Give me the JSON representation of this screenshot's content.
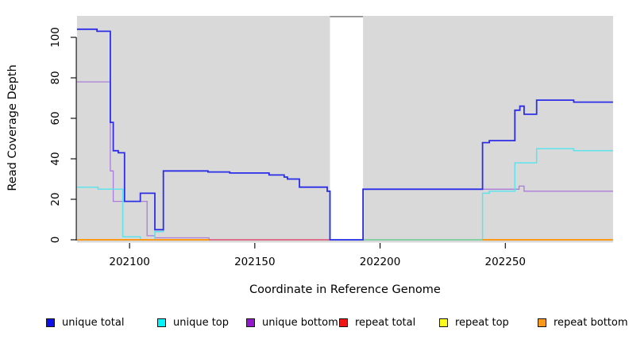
{
  "chart_data": {
    "type": "line",
    "step": true,
    "title": "",
    "xlabel": "Coordinate in Reference Genome",
    "ylabel": "Read Coverage Depth",
    "xlim": [
      202079,
      202293
    ],
    "ylim": [
      0,
      110.6
    ],
    "xticks": [
      202100,
      202150,
      202200,
      202250
    ],
    "yticks": [
      0,
      20,
      40,
      60,
      80,
      100
    ],
    "grid": "off",
    "legend_position": "bottom",
    "plot_background": "#d9d9d9",
    "masked_region": {
      "x0": 202180,
      "x1": 202193.2,
      "fill": "#ffffff",
      "cap_color": "#8c8c8c"
    },
    "series": [
      {
        "name": "unique total",
        "color": "#2d2de8",
        "width": 1.8,
        "points": [
          [
            202079,
            104
          ],
          [
            202087,
            103
          ],
          [
            202092.3,
            58
          ],
          [
            202093.5,
            44
          ],
          [
            202095.5,
            43
          ],
          [
            202098,
            19
          ],
          [
            202104.3,
            23
          ],
          [
            202110.1,
            5
          ],
          [
            202113.5,
            34
          ],
          [
            202131.3,
            33.5
          ],
          [
            202140,
            33
          ],
          [
            202155.7,
            32
          ],
          [
            202161.7,
            31
          ],
          [
            202163,
            30
          ],
          [
            202167.8,
            26
          ],
          [
            202178.9,
            24
          ],
          [
            202180,
            0
          ],
          [
            202193.2,
            25
          ],
          [
            202240.9,
            48
          ],
          [
            202243.6,
            49
          ],
          [
            202253.8,
            64
          ],
          [
            202255.8,
            66
          ],
          [
            202257.5,
            62
          ],
          [
            202262.5,
            69
          ],
          [
            202277.3,
            68
          ]
        ]
      },
      {
        "name": "unique top",
        "color": "#5fe3ea",
        "width": 1.5,
        "points": [
          [
            202079,
            26
          ],
          [
            202087.4,
            25
          ],
          [
            202097.3,
            1.5
          ],
          [
            202104.3,
            0
          ],
          [
            202110.1,
            4
          ],
          [
            202113.5,
            34
          ],
          [
            202131.3,
            33.5
          ],
          [
            202140,
            33
          ],
          [
            202155.7,
            32
          ],
          [
            202161.7,
            31
          ],
          [
            202163,
            30
          ],
          [
            202167.8,
            26
          ],
          [
            202178.9,
            24
          ],
          [
            202180,
            0
          ],
          [
            202240.9,
            23
          ],
          [
            202243.6,
            24
          ],
          [
            202253.8,
            38
          ],
          [
            202262.5,
            45
          ],
          [
            202277.3,
            44
          ]
        ]
      },
      {
        "name": "unique bottom",
        "color": "#ac7cd9",
        "width": 1.3,
        "points": [
          [
            202079,
            78
          ],
          [
            202092.3,
            34
          ],
          [
            202093.5,
            19
          ],
          [
            202107,
            2
          ],
          [
            202110.1,
            1
          ],
          [
            202131.7,
            0
          ],
          [
            202193.2,
            25
          ],
          [
            202253.8,
            25
          ],
          [
            202255.5,
            26.5
          ],
          [
            202257.5,
            24
          ]
        ]
      },
      {
        "name": "repeat total",
        "color": "#f01414",
        "width": 1.4,
        "points": [
          [
            202079,
            0
          ]
        ]
      },
      {
        "name": "repeat top",
        "color": "#fcfc19",
        "width": 1.4,
        "points": [
          [
            202079,
            0
          ]
        ]
      },
      {
        "name": "repeat bottom",
        "color": "#fb9a18",
        "width": 2,
        "points": [
          [
            202079,
            0
          ]
        ]
      }
    ],
    "baseline_segments": [
      {
        "color": "#fb9a18",
        "x0": 202079,
        "x1": 202131.7,
        "width": 2
      },
      {
        "color": "#e25570",
        "x0": 202131.7,
        "x1": 202180,
        "width": 1.4
      },
      {
        "color": "#7fc98f",
        "x0": 202193.2,
        "x1": 202240.9,
        "width": 1.4
      },
      {
        "color": "#fb9a18",
        "x0": 202240.9,
        "x1": 202293,
        "width": 2
      }
    ],
    "legend": [
      {
        "label": "unique total",
        "fill": "#0f0fe8"
      },
      {
        "label": "unique top",
        "fill": "#00f5ff"
      },
      {
        "label": "unique bottom",
        "fill": "#9416ce"
      },
      {
        "label": "repeat total",
        "fill": "#f01414"
      },
      {
        "label": "repeat top",
        "fill": "#fcfc19"
      },
      {
        "label": "repeat bottom",
        "fill": "#fb9a18"
      }
    ]
  }
}
